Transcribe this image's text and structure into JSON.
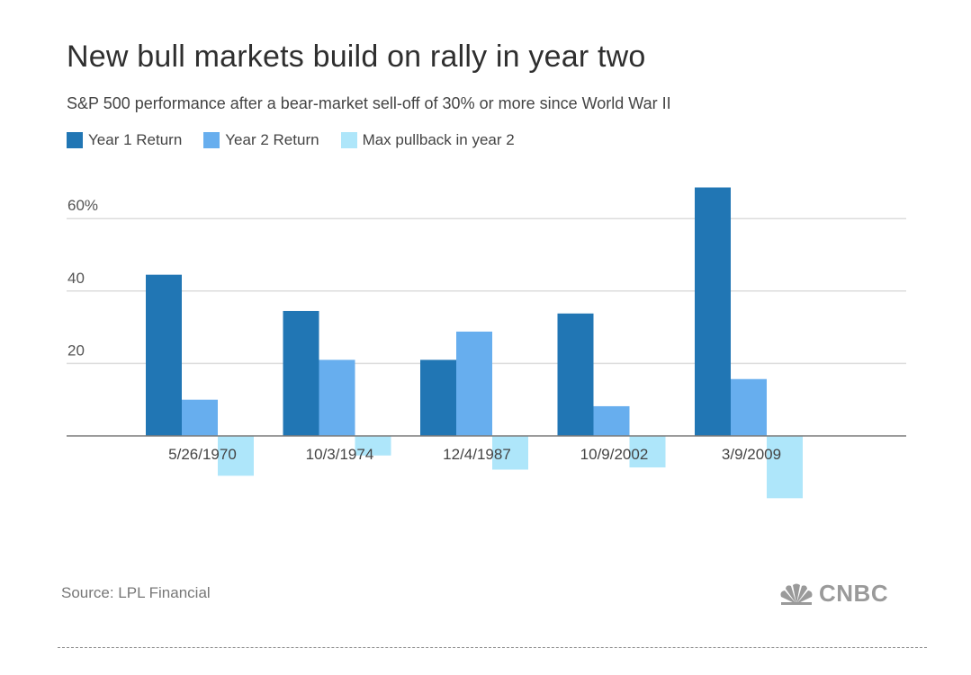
{
  "chart_data": {
    "type": "bar",
    "title": "New bull markets build on rally in year two",
    "subtitle": "S&P 500 performance after a bear-market sell-off of 30% or more since World War II",
    "categories": [
      "5/26/1970",
      "10/3/1974",
      "12/4/1987",
      "10/9/2002",
      "3/9/2009"
    ],
    "series": [
      {
        "name": "Year 1 Return",
        "color": "#2176b4",
        "values": [
          44.5,
          34.5,
          21,
          33.8,
          68.6
        ]
      },
      {
        "name": "Year 2 Return",
        "color": "#67aeee",
        "values": [
          10,
          21,
          28.8,
          8.2,
          15.7
        ]
      },
      {
        "name": "Max pullback in year 2",
        "color": "#aee6fa",
        "values": [
          -11,
          -5.4,
          -9.3,
          -8.7,
          -17.2
        ]
      }
    ],
    "y_ticks": [
      {
        "value": 60,
        "label": "60%"
      },
      {
        "value": 40,
        "label": "40"
      },
      {
        "value": 20,
        "label": "20"
      }
    ],
    "ylim": [
      -25,
      70
    ],
    "grid": true,
    "legend_position": "top-left",
    "xlabel": "",
    "ylabel": "",
    "source": "Source: LPL Financial"
  },
  "branding": {
    "logo_text": "CNBC",
    "logo_color": "#9a9a9a"
  }
}
